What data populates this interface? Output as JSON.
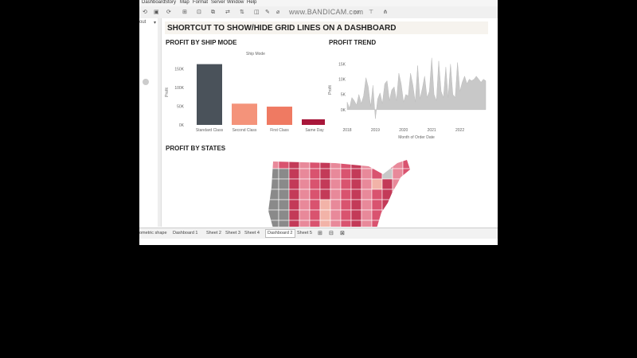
{
  "watermark": "www.BANDICAM.com",
  "menu": [
    "Dashboard",
    "Story",
    "Map",
    "Format",
    "Server",
    "Window",
    "Help"
  ],
  "left_pane_label": "out",
  "dashboard_title": "SHORTCUT TO SHOW/HIDE GRID LINES ON A DASHBOARD",
  "sections": {
    "ship_mode": "PROFIT BY SHIP MODE",
    "trend": "PROFIT TREND",
    "states": "PROFIT BY STATES"
  },
  "tabs": [
    "ometric shape",
    "Dashboard 1",
    "Sheet 2",
    "Sheet 3",
    "Sheet 4",
    "Dashboard 2",
    "Sheet 5"
  ],
  "active_tab": "Dashboard 2",
  "chart_data": [
    {
      "type": "bar",
      "title": "Ship Mode",
      "categories": [
        "Standard Class",
        "Second Class",
        "First Class",
        "Same Day"
      ],
      "values": [
        163000,
        57000,
        49000,
        15000
      ],
      "colors": [
        "#4a525a",
        "#f4937a",
        "#ef7a62",
        "#a8173a"
      ],
      "ylabel": "Profit",
      "yticks": [
        "0K",
        "50K",
        "100K",
        "150K"
      ],
      "ylim": [
        0,
        175000
      ],
      "grid": false
    },
    {
      "type": "area",
      "x": [
        "2018-01",
        "2018-02",
        "2018-03",
        "2018-04",
        "2018-05",
        "2018-06",
        "2018-07",
        "2018-08",
        "2018-09",
        "2018-10",
        "2018-11",
        "2018-12",
        "2019-01",
        "2019-02",
        "2019-03",
        "2019-04",
        "2019-05",
        "2019-06",
        "2019-07",
        "2019-08",
        "2019-09",
        "2019-10",
        "2019-11",
        "2019-12",
        "2020-01",
        "2020-02",
        "2020-03",
        "2020-04",
        "2020-05",
        "2020-06",
        "2020-07",
        "2020-08",
        "2020-09",
        "2020-10",
        "2020-11",
        "2020-12",
        "2021-01",
        "2021-02",
        "2021-03",
        "2021-04",
        "2021-05",
        "2021-06",
        "2021-07",
        "2021-08",
        "2021-09",
        "2021-10",
        "2021-11",
        "2021-12",
        "2022-01",
        "2022-02",
        "2022-03",
        "2022-04",
        "2022-05",
        "2022-06",
        "2022-07",
        "2022-08",
        "2022-09",
        "2022-10",
        "2022-11",
        "2022-12"
      ],
      "values": [
        2500,
        500,
        4000,
        3000,
        1500,
        5000,
        2000,
        4500,
        10500,
        7500,
        1000,
        8000,
        -3000,
        3500,
        5500,
        2000,
        8500,
        9500,
        3000,
        6500,
        7500,
        3000,
        12000,
        8500,
        2500,
        5000,
        4500,
        12000,
        8000,
        2500,
        14500,
        3500,
        7000,
        11000,
        4000,
        6000,
        17000,
        5000,
        3000,
        16000,
        6000,
        4000,
        14000,
        4000,
        15000,
        5000,
        4000,
        15500,
        6000,
        9000,
        11000,
        8500,
        10000,
        9500,
        10000,
        11000,
        10000,
        9000,
        10000,
        9500
      ],
      "xlabel": "Month of Order Date",
      "ylabel": "Profit",
      "xticks": [
        "2018",
        "2019",
        "2020",
        "2021",
        "2022"
      ],
      "yticks": [
        "0K",
        "5K",
        "10K",
        "15K"
      ],
      "ylim": [
        -5000,
        18000
      ],
      "color": "#c8c8c8",
      "grid": false
    }
  ],
  "map": {
    "palette": [
      "#e8899a",
      "#d9536f",
      "#c33a58",
      "#f2b3a8",
      "#8a8a8a",
      "#c8c8c8"
    ]
  }
}
